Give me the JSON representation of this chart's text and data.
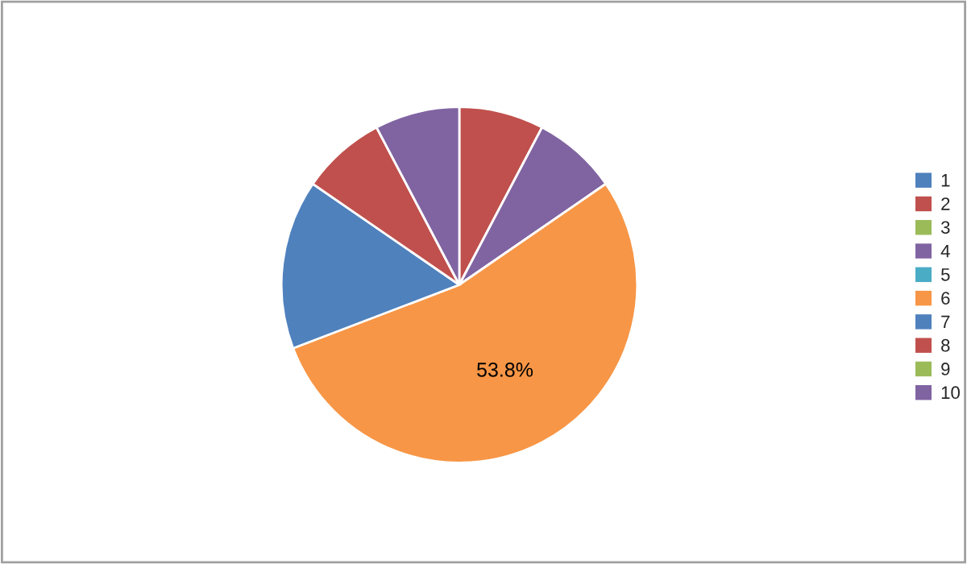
{
  "chart_data": {
    "type": "pie",
    "categories": [
      "1",
      "2",
      "3",
      "4",
      "5",
      "6",
      "7",
      "8",
      "9",
      "10"
    ],
    "values": [
      0,
      7.7,
      0,
      7.7,
      0,
      53.8,
      15.4,
      7.7,
      0,
      7.7
    ],
    "colors": [
      "#4f81bd",
      "#c0504d",
      "#9bbb59",
      "#8064a2",
      "#4bacc6",
      "#f79646",
      "#4f81bd",
      "#c0504d",
      "#9bbb59",
      "#8064a2"
    ],
    "value_labels": [
      null,
      null,
      null,
      null,
      null,
      "53.8%",
      null,
      null,
      null,
      null
    ],
    "legend": "right"
  }
}
